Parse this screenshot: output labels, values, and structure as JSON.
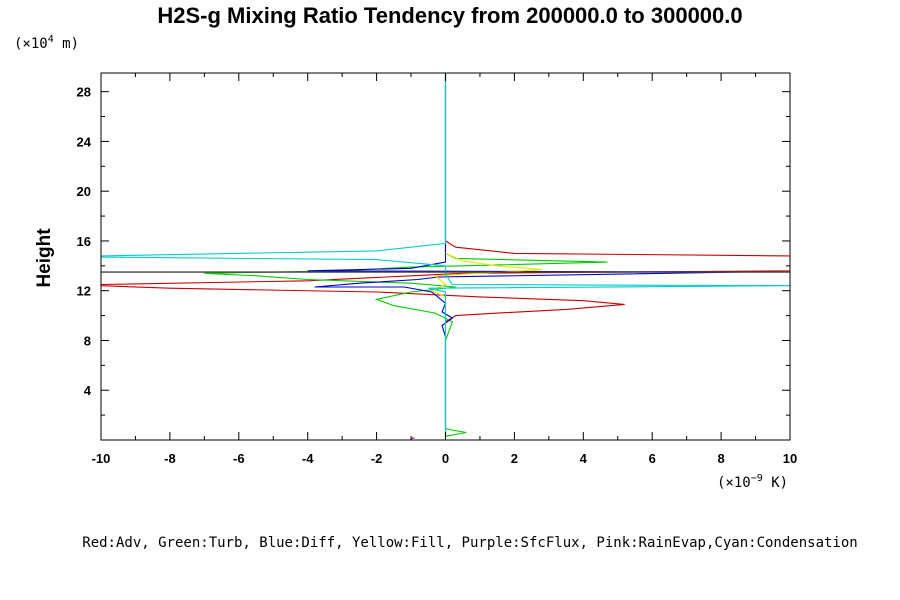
{
  "chart_data": {
    "type": "line",
    "title": "H2S-g Mixing Ratio Tendency from 200000.0 to 300000.0",
    "ylabel": "Height",
    "y_unit": {
      "prefix": "(×10",
      "exp": "4",
      "suffix": " m)"
    },
    "x_unit": {
      "prefix": "(×10",
      "exp": "−9",
      "suffix": " K)"
    },
    "xlim": [
      -10,
      10
    ],
    "ylim": [
      0,
      29.5
    ],
    "x_ticks": [
      -10,
      -8,
      -6,
      -4,
      -2,
      0,
      2,
      4,
      6,
      8,
      10
    ],
    "y_ticks": [
      4,
      8,
      12,
      16,
      20,
      24,
      28
    ],
    "x_tick_labels": [
      "-10",
      "-8",
      "-6",
      "-4",
      "-2",
      "0",
      "2",
      "4",
      "6",
      "8",
      "10"
    ],
    "y_tick_labels": [
      "4",
      "8",
      "12",
      "16",
      "20",
      "24",
      "28"
    ],
    "reference_line": {
      "y": 13.5,
      "color": "#000000"
    },
    "legend_text": "Red:Adv, Green:Turb, Blue:Diff, Yellow:Fill, Purple:SfcFlux, Pink:RainEvap,Cyan:Condensation",
    "series": [
      {
        "name": "Adv",
        "color": "#cc0000",
        "points": [
          [
            0,
            0.3
          ],
          [
            0,
            8
          ],
          [
            0,
            9.5
          ],
          [
            0.3,
            10
          ],
          [
            1.5,
            10.2
          ],
          [
            3.5,
            10.5
          ],
          [
            5.2,
            10.9
          ],
          [
            4,
            11.2
          ],
          [
            1,
            11.5
          ],
          [
            -2,
            11.9
          ],
          [
            -8,
            12.2
          ],
          [
            -10,
            12.4
          ],
          [
            -10,
            12.5
          ],
          [
            -4,
            12.8
          ],
          [
            -1,
            13.2
          ],
          [
            0.5,
            13.4
          ],
          [
            10,
            13.6
          ],
          [
            10,
            14.8
          ],
          [
            2,
            15
          ],
          [
            0.3,
            15.5
          ],
          [
            0,
            16
          ],
          [
            0,
            29.5
          ]
        ]
      },
      {
        "name": "Turb",
        "color": "#00cc00",
        "points": [
          [
            0,
            0.3
          ],
          [
            0.6,
            0.6
          ],
          [
            0,
            0.9
          ],
          [
            0,
            8
          ],
          [
            0.2,
            9.5
          ],
          [
            -0.3,
            10.2
          ],
          [
            -1.5,
            10.8
          ],
          [
            -2,
            11.3
          ],
          [
            -1,
            11.9
          ],
          [
            0.3,
            12.3
          ],
          [
            -1,
            12.6
          ],
          [
            -4,
            12.9
          ],
          [
            -5.5,
            13.2
          ],
          [
            -7,
            13.4
          ],
          [
            -3,
            13.6
          ],
          [
            -1,
            13.9
          ],
          [
            0.5,
            14
          ],
          [
            4.7,
            14.3
          ],
          [
            0.3,
            14.6
          ],
          [
            0,
            15
          ],
          [
            0,
            29.5
          ]
        ]
      },
      {
        "name": "Diff",
        "color": "#0000cc",
        "points": [
          [
            0,
            0.5
          ],
          [
            0,
            8.3
          ],
          [
            -0.1,
            9.2
          ],
          [
            0.2,
            9.8
          ],
          [
            -0.1,
            10.3
          ],
          [
            0,
            11
          ],
          [
            -0.4,
            11.9
          ],
          [
            -1.2,
            12.3
          ],
          [
            -3.8,
            12.3
          ],
          [
            -2.5,
            12.6
          ],
          [
            -0.8,
            12.9
          ],
          [
            -0.2,
            13.1
          ],
          [
            8.5,
            13.5
          ],
          [
            -4,
            13.6
          ],
          [
            -1,
            13.8
          ],
          [
            0,
            14.3
          ],
          [
            0,
            29.5
          ]
        ]
      },
      {
        "name": "Fill",
        "color": "#e6e600",
        "points": [
          [
            0,
            11.5
          ],
          [
            -0.4,
            12
          ],
          [
            0,
            12.5
          ],
          [
            -0.3,
            13.2
          ],
          [
            2.8,
            13.7
          ],
          [
            1.5,
            14
          ],
          [
            0.5,
            14.4
          ],
          [
            0,
            15
          ]
        ]
      },
      {
        "name": "SfcFlux",
        "color": "#9900cc",
        "points": [
          [
            -1,
            0.1
          ],
          [
            -0.9,
            0.2
          ]
        ]
      },
      {
        "name": "RainEvap",
        "color": "#ff66cc",
        "points": [
          [
            0,
            0.1
          ],
          [
            0,
            0.2
          ]
        ]
      },
      {
        "name": "Condensation",
        "color": "#00cccc",
        "points": [
          [
            0,
            0.2
          ],
          [
            0,
            11.9
          ],
          [
            -0.5,
            12.2
          ],
          [
            10,
            12.4
          ],
          [
            0.2,
            12.5
          ],
          [
            0,
            13.3
          ],
          [
            0,
            14
          ],
          [
            -2,
            14.5
          ],
          [
            -10,
            14.7
          ],
          [
            -10,
            14.8
          ],
          [
            -2,
            15.2
          ],
          [
            0,
            15.8
          ],
          [
            0,
            29.5
          ]
        ]
      }
    ],
    "grid": false,
    "legend_placement": "bottom"
  }
}
